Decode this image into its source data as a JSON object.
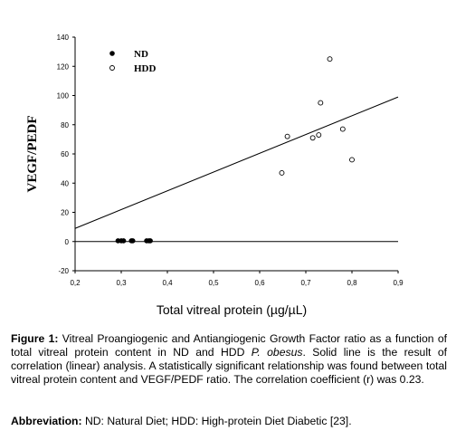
{
  "chart_data": {
    "type": "scatter",
    "xlabel": "Total vitreal protein (µg/µL)",
    "ylabel": "VEGF/PEDF",
    "xlim": [
      0.2,
      0.9
    ],
    "ylim": [
      -20,
      140
    ],
    "x_ticks": [
      "0,2",
      "0,3",
      "0,4",
      "0,5",
      "0,6",
      "0,7",
      "0,8",
      "0,9"
    ],
    "y_ticks": [
      "-20",
      "0",
      "20",
      "40",
      "60",
      "80",
      "100",
      "120",
      "140"
    ],
    "legend_position": "top-left",
    "series": [
      {
        "name": "ND",
        "marker": "filled-circle",
        "color": "#000000",
        "points": [
          [
            0.293,
            0.5
          ],
          [
            0.3,
            0.5
          ],
          [
            0.305,
            0.5
          ],
          [
            0.322,
            0.5
          ],
          [
            0.325,
            0.5
          ],
          [
            0.355,
            0.5
          ],
          [
            0.36,
            0.5
          ],
          [
            0.363,
            0.5
          ]
        ]
      },
      {
        "name": "HDD",
        "marker": "open-circle",
        "color": "#000000",
        "points": [
          [
            0.648,
            47
          ],
          [
            0.66,
            72
          ],
          [
            0.715,
            71
          ],
          [
            0.728,
            73
          ],
          [
            0.732,
            95
          ],
          [
            0.752,
            125
          ],
          [
            0.78,
            77
          ],
          [
            0.8,
            56
          ]
        ]
      }
    ],
    "fit_line": {
      "x": [
        0.2,
        0.9
      ],
      "y": [
        9,
        99
      ]
    },
    "zero_line": {
      "x": [
        0.2,
        0.9
      ],
      "y": [
        0,
        0
      ]
    }
  },
  "caption": {
    "label": "Figure 1:",
    "text_before_italic": "Vitreal Proangiogenic and Antiangiogenic Growth Factor ratio as a function of total vitreal protein content in ND and HDD",
    "italic": "P. obesus",
    "text_after_italic": ". Solid line is the result of correlation (linear) analysis. A statistically significant relationship was found between total vitreal protein content and VEGF/PEDF ratio. The correlation coefficient (r) was 0.23."
  },
  "abbreviation": {
    "label": "Abbreviation:",
    "text": "ND: Natural Diet; HDD: High-protein Diet Diabetic [23]."
  }
}
